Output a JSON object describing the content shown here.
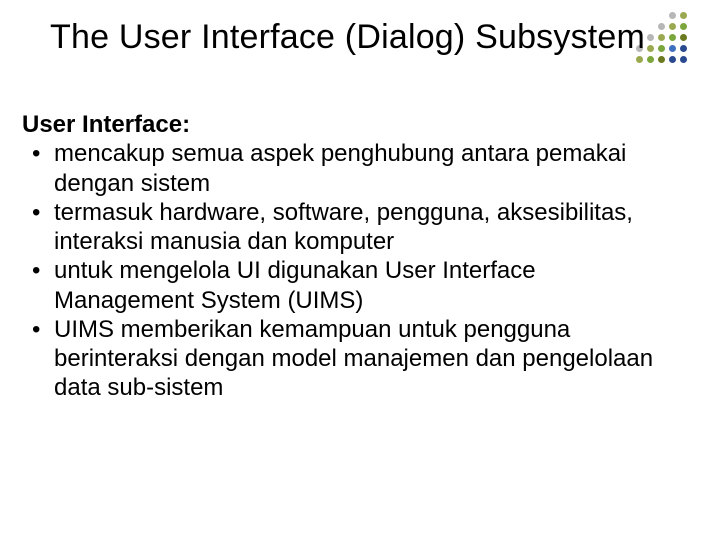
{
  "title": "The User Interface (Dialog) Subsystem",
  "subheading": "User Interface:",
  "bullets": [
    "mencakup semua aspek penghubung antara pemakai dengan sistem",
    "termasuk hardware, software, pengguna, aksesibilitas, interaksi manusia dan komputer",
    "untuk mengelola UI digunakan User Interface Management System (UIMS)",
    "UIMS memberikan kemampuan untuk pengguna berinteraksi dengan model manajemen dan pengelolaan data sub-sistem"
  ],
  "title_fontsize": 34,
  "body_fontsize": 24,
  "text_color": "#000000",
  "background_color": "#ffffff",
  "deco": {
    "grid": {
      "cols": 5,
      "rows": 5,
      "spacing": 11,
      "dot_size": 7
    },
    "palette": {
      "olive": "#9aa84f",
      "green": "#7aa63c",
      "dk_olive": "#6b7a1f",
      "blue": "#3f6fbf",
      "navy": "#2a4a8f",
      "gray": "#b7b7b7",
      "lt_gray": "#dcdcdc",
      "white": "#ffffff"
    },
    "pattern": [
      [
        "white",
        "white",
        "lt_gray",
        "gray",
        "olive"
      ],
      [
        "white",
        "lt_gray",
        "gray",
        "olive",
        "green"
      ],
      [
        "lt_gray",
        "gray",
        "olive",
        "green",
        "dk_olive"
      ],
      [
        "gray",
        "olive",
        "green",
        "blue",
        "navy"
      ],
      [
        "olive",
        "green",
        "dk_olive",
        "navy",
        "navy"
      ]
    ]
  }
}
